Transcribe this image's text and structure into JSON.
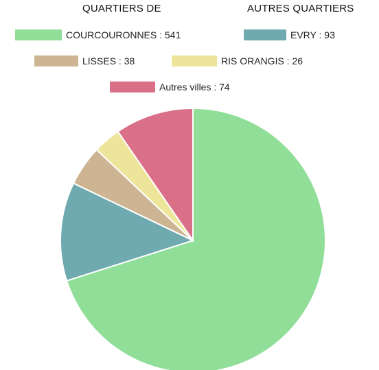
{
  "headers": {
    "left": "QUARTIERS DE",
    "right": "AUTRES QUARTIERS"
  },
  "chart_data": {
    "type": "pie",
    "categories": [
      "COURCOURONNES",
      "EVRY",
      "LISSES",
      "RIS ORANGIS",
      "Autres villes"
    ],
    "values": [
      541,
      93,
      38,
      26,
      74
    ],
    "labels": [
      "COURCOURONNES : 541",
      "EVRY : 93",
      "LISSES : 38",
      "RIS ORANGIS : 26",
      "Autres villes : 74"
    ],
    "colors": [
      "#90de98",
      "#6faab0",
      "#cdb594",
      "#ede59a",
      "#d97088"
    ],
    "start_angle": "12 o'clock",
    "direction": "clockwise",
    "legend_position": "top"
  }
}
